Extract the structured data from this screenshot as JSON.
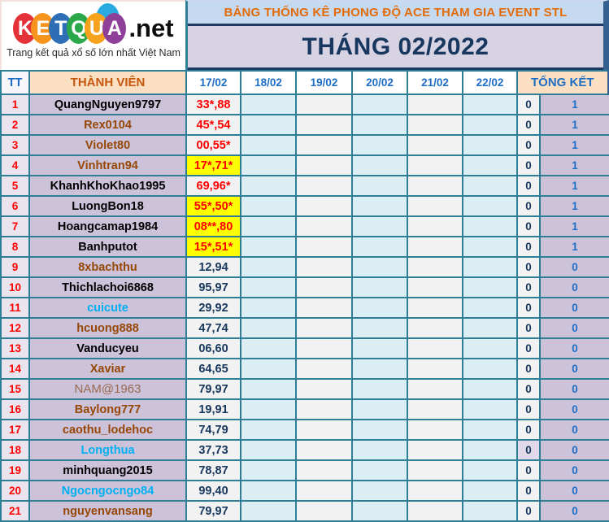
{
  "logo": {
    "letters": [
      {
        "char": "K",
        "color": "#E53238"
      },
      {
        "char": "E",
        "color": "#F7941E"
      },
      {
        "char": "T",
        "color": "#2E6EB6"
      },
      {
        "char": "Q",
        "color": "#2BA84A"
      },
      {
        "char": "U",
        "color": "#F6A21C"
      },
      {
        "char": "A",
        "color": "#8E3F97"
      }
    ],
    "suffix": ".net",
    "tagline": "Trang kết quả xổ số lớn nhất Việt Nam"
  },
  "header": {
    "title": "BẢNG THỐNG KÊ PHONG ĐỘ ACE THAM GIA EVENT STL",
    "month": "THÁNG 02/2022"
  },
  "table": {
    "col_tt": "TT",
    "col_member": "THÀNH VIÊN",
    "date_columns": [
      "17/02",
      "18/02",
      "19/02",
      "20/02",
      "21/02",
      "22/02"
    ],
    "col_total": "TỔNG KẾT",
    "rows": [
      {
        "tt": "1",
        "member": "QuangNguyen9797",
        "name_color": "black",
        "value": "33*,88",
        "value_color": "red",
        "highlight": false,
        "t1": "0",
        "t2": "1",
        "t1_bg": "plain"
      },
      {
        "tt": "2",
        "member": "Rex0104",
        "name_color": "brown",
        "value": "45*,54",
        "value_color": "red",
        "highlight": false,
        "t1": "0",
        "t2": "1",
        "t1_bg": "plain"
      },
      {
        "tt": "3",
        "member": "Violet80",
        "name_color": "brown",
        "value": "00,55*",
        "value_color": "red",
        "highlight": false,
        "t1": "0",
        "t2": "1",
        "t1_bg": "plain"
      },
      {
        "tt": "4",
        "member": "Vinhtran94",
        "name_color": "brown",
        "value": "17*,71*",
        "value_color": "red",
        "highlight": true,
        "t1": "0",
        "t2": "1",
        "t1_bg": "plain"
      },
      {
        "tt": "5",
        "member": "KhanhKhoKhao1995",
        "name_color": "black",
        "value": "69,96*",
        "value_color": "red",
        "highlight": false,
        "t1": "0",
        "t2": "1",
        "t1_bg": "plain"
      },
      {
        "tt": "6",
        "member": "LuongBon18",
        "name_color": "black",
        "value": "55*,50*",
        "value_color": "red",
        "highlight": true,
        "t1": "0",
        "t2": "1",
        "t1_bg": "plain"
      },
      {
        "tt": "7",
        "member": "Hoangcamap1984",
        "name_color": "black",
        "value": "08**,80",
        "value_color": "red",
        "highlight": true,
        "t1": "0",
        "t2": "1",
        "t1_bg": "plain"
      },
      {
        "tt": "8",
        "member": "Banhputot",
        "name_color": "black",
        "value": "15*,51*",
        "value_color": "red",
        "highlight": true,
        "t1": "0",
        "t2": "1",
        "t1_bg": "plain"
      },
      {
        "tt": "9",
        "member": "8xbachthu",
        "name_color": "brown",
        "value": "12,94",
        "value_color": "navy",
        "highlight": false,
        "t1": "0",
        "t2": "0",
        "t1_bg": "plain"
      },
      {
        "tt": "10",
        "member": "Thichlachoi6868",
        "name_color": "black",
        "value": "95,97",
        "value_color": "navy",
        "highlight": false,
        "t1": "0",
        "t2": "0",
        "t1_bg": "plain"
      },
      {
        "tt": "11",
        "member": "cuicute",
        "name_color": "blue",
        "value": "29,92",
        "value_color": "navy",
        "highlight": false,
        "t1": "0",
        "t2": "0",
        "t1_bg": "plain"
      },
      {
        "tt": "12",
        "member": "hcuong888",
        "name_color": "brown",
        "value": "47,74",
        "value_color": "navy",
        "highlight": false,
        "t1": "0",
        "t2": "0",
        "t1_bg": "plain"
      },
      {
        "tt": "13",
        "member": "Vanducyeu",
        "name_color": "black",
        "value": "06,60",
        "value_color": "navy",
        "highlight": false,
        "t1": "0",
        "t2": "0",
        "t1_bg": "plain"
      },
      {
        "tt": "14",
        "member": "Xaviar",
        "name_color": "brown",
        "value": "64,65",
        "value_color": "navy",
        "highlight": false,
        "t1": "0",
        "t2": "0",
        "t1_bg": "plain"
      },
      {
        "tt": "15",
        "member": "NAM@1963",
        "name_color": "muted",
        "value": "79,97",
        "value_color": "navy",
        "highlight": false,
        "t1": "0",
        "t2": "0",
        "t1_bg": "plain"
      },
      {
        "tt": "16",
        "member": "Baylong777",
        "name_color": "brown",
        "value": "19,91",
        "value_color": "navy",
        "highlight": false,
        "t1": "0",
        "t2": "0",
        "t1_bg": "plain"
      },
      {
        "tt": "17",
        "member": "caothu_lodehoc",
        "name_color": "brown",
        "value": "74,79",
        "value_color": "navy",
        "highlight": false,
        "t1": "0",
        "t2": "0",
        "t1_bg": "plain"
      },
      {
        "tt": "18",
        "member": "Longthua",
        "name_color": "blue",
        "value": "37,73",
        "value_color": "navy",
        "highlight": false,
        "t1": "0",
        "t2": "0",
        "t1_bg": "lav"
      },
      {
        "tt": "19",
        "member": "minhquang2015",
        "name_color": "black",
        "value": "78,87",
        "value_color": "navy",
        "highlight": false,
        "t1": "0",
        "t2": "0",
        "t1_bg": "plain"
      },
      {
        "tt": "20",
        "member": "Ngocngocngo84",
        "name_color": "blue",
        "value": "99,40",
        "value_color": "navy",
        "highlight": false,
        "t1": "0",
        "t2": "0",
        "t1_bg": "plain"
      },
      {
        "tt": "21",
        "member": "nguyenvansang",
        "name_color": "brown",
        "value": "79,97",
        "value_color": "navy",
        "highlight": false,
        "t1": "0",
        "t2": "0",
        "t1_bg": "plain"
      }
    ]
  },
  "colors": {
    "grid_teal": "#2E7F96",
    "navy_frame": "#1F3864",
    "title_bg": "#C5D9F1",
    "title_text": "#E36C0A",
    "month_bg": "#D8D3E3",
    "month_text": "#17375E",
    "header_peach": "#FBDFC2",
    "header_blue": "#1F6EC5",
    "member_bg": "#CCC2DA",
    "highlight_yellow": "#FFFF00",
    "value_red": "#FF0000",
    "value_navy": "#17375E",
    "name_brown": "#974806",
    "name_lightblue": "#00B0F0"
  }
}
